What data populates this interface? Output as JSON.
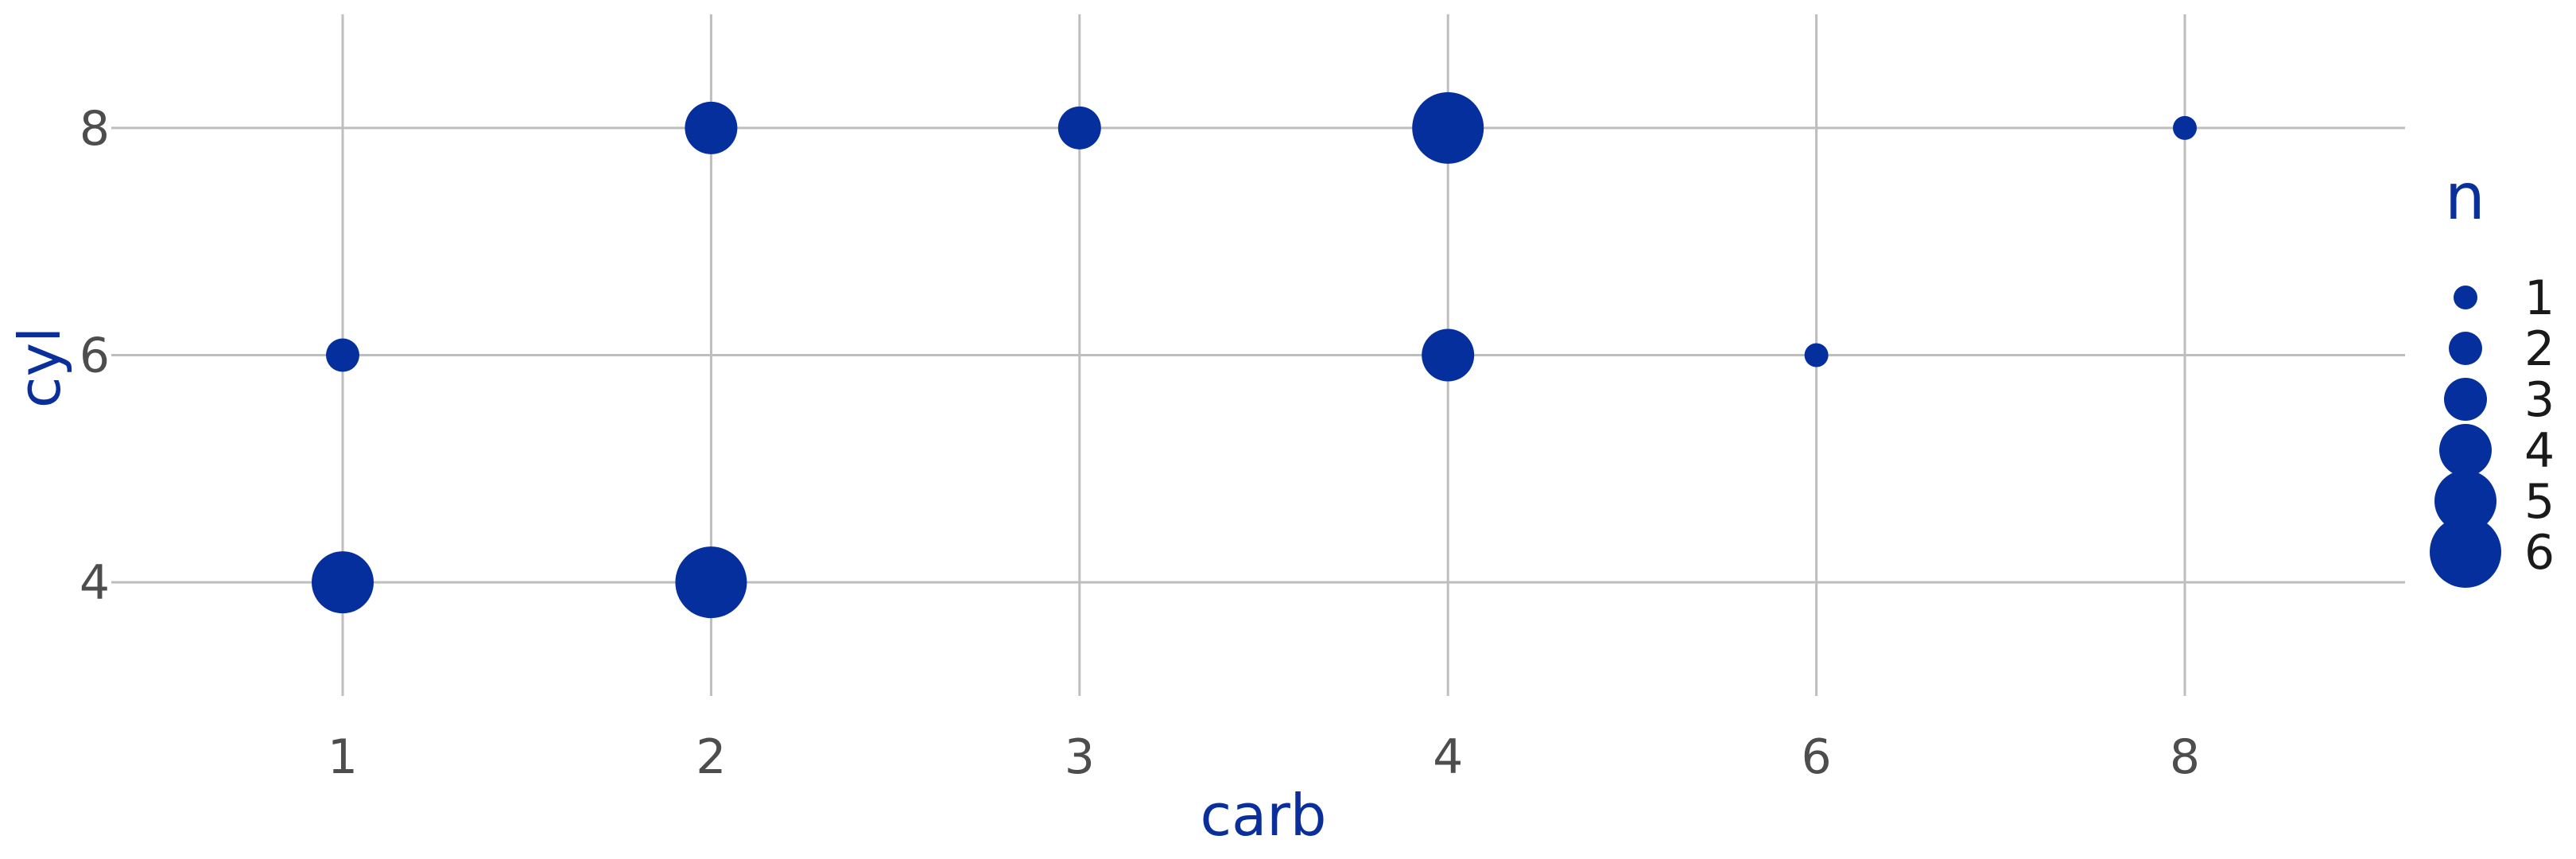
{
  "chart_data": {
    "type": "scatter",
    "title": "",
    "xlabel": "carb",
    "ylabel": "cyl",
    "x_categories": [
      "1",
      "2",
      "3",
      "4",
      "6",
      "8"
    ],
    "y_ticks": [
      4,
      6,
      8
    ],
    "ylim": [
      3,
      9
    ],
    "grid": true,
    "points": [
      {
        "x": "1",
        "y": 4,
        "n": 5
      },
      {
        "x": "1",
        "y": 6,
        "n": 2
      },
      {
        "x": "2",
        "y": 4,
        "n": 6
      },
      {
        "x": "2",
        "y": 8,
        "n": 4
      },
      {
        "x": "3",
        "y": 8,
        "n": 3
      },
      {
        "x": "4",
        "y": 6,
        "n": 4
      },
      {
        "x": "4",
        "y": 8,
        "n": 6
      },
      {
        "x": "6",
        "y": 6,
        "n": 1
      },
      {
        "x": "8",
        "y": 8,
        "n": 1
      }
    ],
    "size_legend": {
      "title": "n",
      "placement": "right",
      "values": [
        1,
        2,
        3,
        4,
        5,
        6
      ]
    },
    "colors": {
      "points": "#052f9d",
      "axis_title": "#0a2f9a",
      "tick_label": "#4d4d4d",
      "grid": "#bebebe"
    }
  }
}
